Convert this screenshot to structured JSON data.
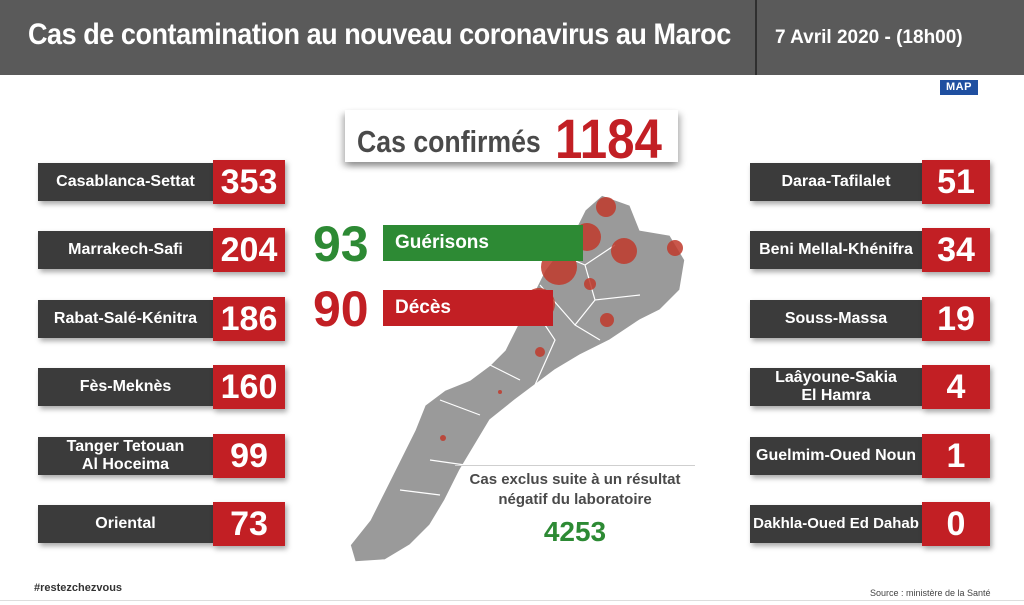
{
  "header": {
    "title": "Cas de contamination au nouveau coronavirus au Maroc",
    "date": "7  Avril  2020 - (18h00)"
  },
  "logo": "MAP",
  "confirmed": {
    "label": "Cas confirmés",
    "value": "1184"
  },
  "recovered": {
    "value": "93",
    "label": "Guérisons",
    "color": "#2d8a34"
  },
  "deaths": {
    "value": "90",
    "label": "Décès",
    "color": "#c21f24"
  },
  "regions_left": [
    {
      "name": "Casablanca-Settat",
      "value": "353"
    },
    {
      "name": "Marrakech-Safi",
      "value": "204"
    },
    {
      "name": "Rabat-Salé-Kénitra",
      "value": "186"
    },
    {
      "name": "Fès-Meknès",
      "value": "160"
    },
    {
      "name": "Tanger Tetouan Al Hoceima",
      "value": "99"
    },
    {
      "name": "Oriental",
      "value": "73"
    }
  ],
  "regions_right": [
    {
      "name": "Daraa-Tafilalet",
      "value": "51"
    },
    {
      "name": "Beni Mellal-Khénifra",
      "value": "34"
    },
    {
      "name": "Souss-Massa",
      "value": "19"
    },
    {
      "name": "Laâyoune-Sakia El Hamra",
      "value": "4"
    },
    {
      "name": "Guelmim-Oued Noun",
      "value": "1"
    },
    {
      "name": "Dakhla-Oued Ed Dahab",
      "value": "0"
    }
  ],
  "excluded": {
    "text": "Cas exclus suite à un résultat négatif du laboratoire",
    "value": "4253"
  },
  "footer": {
    "hashtag": "#restezchezvous",
    "source": "Source : ministère de la Santé"
  },
  "colors": {
    "header_bg": "#5a5a5a",
    "region_label_bg": "#3b3b3b",
    "value_red": "#c21f24",
    "green": "#2d8a34",
    "map_gray": "#9a9a9a",
    "bubble": "#c0392b"
  }
}
